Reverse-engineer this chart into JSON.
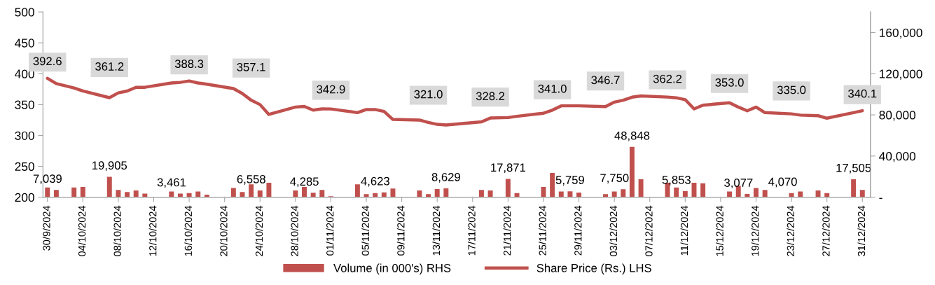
{
  "chart_data": {
    "type": "line",
    "x": [
      "2024-09-30",
      "2024-10-01",
      "2024-10-03",
      "2024-10-04",
      "2024-10-07",
      "2024-10-08",
      "2024-10-09",
      "2024-10-10",
      "2024-10-11",
      "2024-10-14",
      "2024-10-15",
      "2024-10-16",
      "2024-10-17",
      "2024-10-18",
      "2024-10-21",
      "2024-10-22",
      "2024-10-23",
      "2024-10-24",
      "2024-10-25",
      "2024-10-28",
      "2024-10-29",
      "2024-10-30",
      "2024-10-31",
      "2024-11-01",
      "2024-11-04",
      "2024-11-05",
      "2024-11-06",
      "2024-11-07",
      "2024-11-08",
      "2024-11-11",
      "2024-11-12",
      "2024-11-13",
      "2024-11-14",
      "2024-11-18",
      "2024-11-19",
      "2024-11-21",
      "2024-11-22",
      "2024-11-25",
      "2024-11-26",
      "2024-11-27",
      "2024-11-28",
      "2024-11-29",
      "2024-12-02",
      "2024-12-03",
      "2024-12-04",
      "2024-12-05",
      "2024-12-06",
      "2024-12-09",
      "2024-12-10",
      "2024-12-11",
      "2024-12-12",
      "2024-12-13",
      "2024-12-16",
      "2024-12-17",
      "2024-12-18",
      "2024-12-19",
      "2024-12-20",
      "2024-12-23",
      "2024-12-24",
      "2024-12-26",
      "2024-12-27",
      "2024-12-30",
      "2024-12-31"
    ],
    "series": [
      {
        "name": "Volume (in 000's) RHS",
        "type": "bar",
        "axis": "y2",
        "color": "#c0504d",
        "values": [
          9500,
          7039,
          9500,
          10000,
          19905,
          7000,
          5000,
          6500,
          3500,
          5500,
          3461,
          4000,
          5500,
          2500,
          9000,
          5000,
          12500,
          6558,
          14000,
          6500,
          10000,
          4285,
          7000,
          1000,
          12500,
          3000,
          4000,
          4623,
          8500,
          6500,
          3000,
          8000,
          8629,
          7000,
          6500,
          17871,
          4000,
          10000,
          23500,
          5500,
          5759,
          4500,
          3000,
          5500,
          7750,
          48848,
          17500,
          14000,
          9500,
          5853,
          14000,
          13500,
          5500,
          11000,
          3077,
          9000,
          7000,
          4070,
          5500,
          6500,
          4000,
          17505,
          7000
        ],
        "value_labels": [
          null,
          "7,039",
          null,
          null,
          "19,905",
          null,
          null,
          null,
          null,
          null,
          "3,461",
          null,
          null,
          null,
          null,
          null,
          null,
          "6,558",
          null,
          null,
          null,
          "4,285",
          null,
          null,
          null,
          null,
          null,
          "4,623",
          null,
          null,
          null,
          null,
          "8,629",
          null,
          null,
          "17,871",
          null,
          null,
          null,
          null,
          "5,759",
          null,
          null,
          null,
          "7,750",
          "48,848",
          null,
          null,
          null,
          "5,853",
          null,
          null,
          null,
          null,
          "3,077",
          null,
          null,
          "4,070",
          null,
          null,
          null,
          "17,505",
          null
        ]
      },
      {
        "name": "Share Price (Rs.) LHS",
        "color": "#c0504d",
        "values": [
          392.6,
          384,
          377,
          372,
          361.2,
          369,
          372,
          378,
          378,
          385,
          386,
          388.3,
          385,
          383,
          376,
          368,
          357.1,
          350,
          334,
          346,
          347,
          341,
          343,
          342.9,
          337,
          342,
          342,
          339,
          326,
          325,
          321.0,
          318,
          317,
          322,
          328.2,
          329,
          331,
          336,
          341.0,
          348,
          348,
          348,
          346.7,
          354,
          357,
          362,
          364,
          362.2,
          361,
          358,
          343,
          349,
          353.0,
          346,
          340,
          346,
          337,
          335.0,
          333,
          332,
          328,
          337,
          340.1
        ],
        "value_labels": [
          "392.6",
          null,
          null,
          null,
          "361.2",
          null,
          null,
          null,
          null,
          null,
          null,
          "388.3",
          null,
          null,
          null,
          null,
          "357.1",
          null,
          null,
          null,
          null,
          null,
          null,
          "342.9",
          null,
          null,
          null,
          null,
          null,
          null,
          "321.0",
          null,
          null,
          null,
          "328.2",
          null,
          null,
          null,
          "341.0",
          null,
          null,
          null,
          "346.7",
          null,
          null,
          null,
          null,
          "362.2",
          null,
          null,
          null,
          null,
          "353.0",
          null,
          null,
          null,
          null,
          "335.0",
          null,
          null,
          null,
          null,
          "340.1"
        ]
      }
    ],
    "xlim": [
      "2024-09-29T12:00",
      "2024-12-31T22:00"
    ],
    "xticks": [
      {
        "value": "2024-09-30",
        "label": "30/9/2024"
      },
      {
        "value": "2024-10-04",
        "label": "04/10/2024"
      },
      {
        "value": "2024-10-08",
        "label": "08/10/2024"
      },
      {
        "value": "2024-10-12",
        "label": "12/10/2024"
      },
      {
        "value": "2024-10-16",
        "label": "16/10/2024"
      },
      {
        "value": "2024-10-20",
        "label": "20/10/2024"
      },
      {
        "value": "2024-10-24",
        "label": "24/10/2024"
      },
      {
        "value": "2024-10-28",
        "label": "28/10/2024"
      },
      {
        "value": "2024-11-01",
        "label": "01/11/2024"
      },
      {
        "value": "2024-11-05",
        "label": "05/11/2024"
      },
      {
        "value": "2024-11-09",
        "label": "09/11/2024"
      },
      {
        "value": "2024-11-13",
        "label": "13/11/2024"
      },
      {
        "value": "2024-11-17",
        "label": "17/11/2024"
      },
      {
        "value": "2024-11-21",
        "label": "21/11/2024"
      },
      {
        "value": "2024-11-25",
        "label": "25/11/2024"
      },
      {
        "value": "2024-11-29",
        "label": "29/11/2024"
      },
      {
        "value": "2024-12-03",
        "label": "03/12/2024"
      },
      {
        "value": "2024-12-07",
        "label": "07/12/2024"
      },
      {
        "value": "2024-12-11",
        "label": "11/12/2024"
      },
      {
        "value": "2024-12-15",
        "label": "15/12/2024"
      },
      {
        "value": "2024-12-19",
        "label": "19/12/2024"
      },
      {
        "value": "2024-12-23",
        "label": "23/12/2024"
      },
      {
        "value": "2024-12-27",
        "label": "27/12/2024"
      },
      {
        "value": "2024-12-31",
        "label": "31/12/2024"
      }
    ],
    "ylim": [
      200,
      500
    ],
    "yticks": [
      200,
      250,
      300,
      350,
      400,
      450,
      500
    ],
    "y2lim": [
      0,
      180000
    ],
    "y2ticks": [
      {
        "value": 0,
        "label": "-"
      },
      {
        "value": 40000,
        "label": "40,000"
      },
      {
        "value": 80000,
        "label": "80,000"
      },
      {
        "value": 120000,
        "label": "120,000"
      },
      {
        "value": 160000,
        "label": "160,000"
      }
    ],
    "legend": "bottom"
  }
}
